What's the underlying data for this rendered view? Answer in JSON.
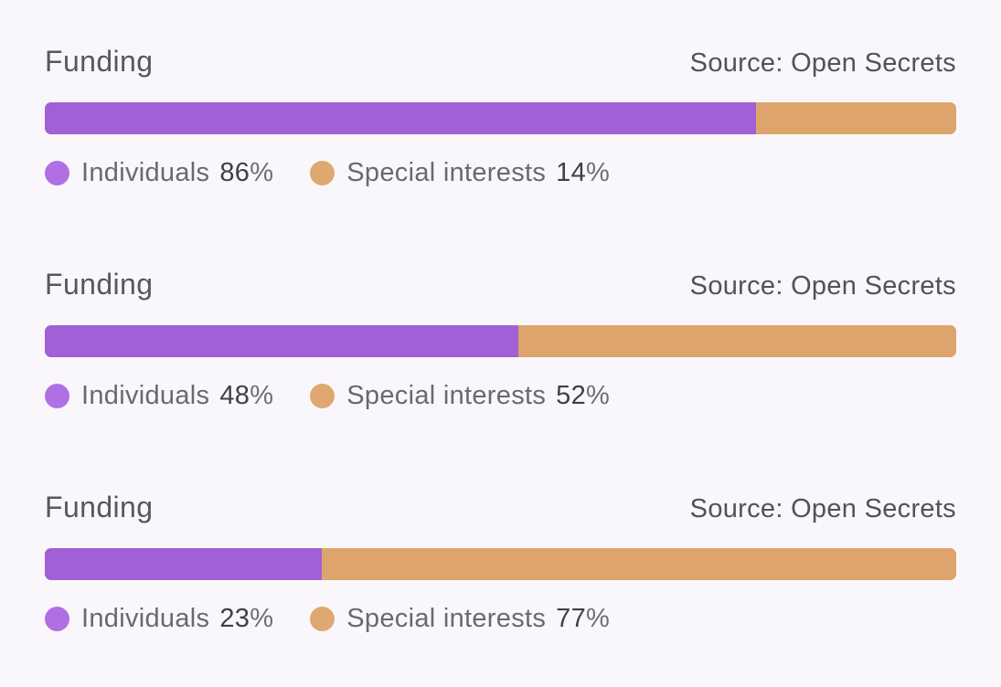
{
  "page": {
    "background": "#faf7fc"
  },
  "colors": {
    "individuals_bar": "#a160d6",
    "individuals_dot": "#b06fe3",
    "special_interests_bar": "#dda56c",
    "special_interests_dot": "#dfa871",
    "title_text": "#58585b",
    "source_text": "#535255",
    "legend_label_text": "#6a696d",
    "legend_value_text": "#414044"
  },
  "chart_data": [
    {
      "type": "bar",
      "orientation": "horizontal-stacked",
      "title": "Funding",
      "source": "Source: Open Secrets",
      "legend_position": "bottom",
      "series": [
        {
          "name": "Individuals",
          "value": 86,
          "unit": "%",
          "color": "#a160d6"
        },
        {
          "name": "Special interests",
          "value": 14,
          "unit": "%",
          "color": "#dda56c"
        }
      ],
      "bar_visual_split_pct": 78
    },
    {
      "type": "bar",
      "orientation": "horizontal-stacked",
      "title": "Funding",
      "source": "Source: Open Secrets",
      "legend_position": "bottom",
      "series": [
        {
          "name": "Individuals",
          "value": 48,
          "unit": "%",
          "color": "#a160d6"
        },
        {
          "name": "Special interests",
          "value": 52,
          "unit": "%",
          "color": "#dda56c"
        }
      ],
      "bar_visual_split_pct": 52
    },
    {
      "type": "bar",
      "orientation": "horizontal-stacked",
      "title": "Funding",
      "source": "Source: Open Secrets",
      "legend_position": "bottom",
      "series": [
        {
          "name": "Individuals",
          "value": 23,
          "unit": "%",
          "color": "#a160d6"
        },
        {
          "name": "Special interests",
          "value": 77,
          "unit": "%",
          "color": "#dda56c"
        }
      ],
      "bar_visual_split_pct": 30.4
    }
  ]
}
